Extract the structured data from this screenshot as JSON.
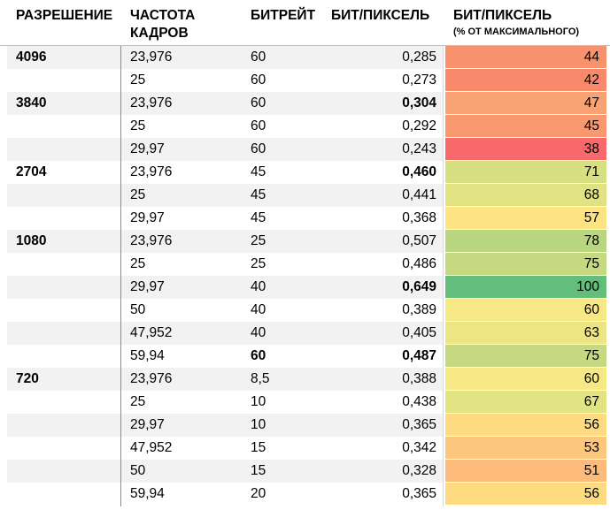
{
  "headers": {
    "resolution": "РАЗРЕШЕНИЕ",
    "framerate_line1": "ЧАСТОТА",
    "framerate_line2": "КАДРОВ",
    "bitrate": "БИТРЕЙТ",
    "bpp": "БИТ/ПИКСЕЛЬ",
    "pct": "БИТ/ПИКСЕЛЬ",
    "pct_sub": "(% ОТ МАКСИМАЛЬНОГО)"
  },
  "rows": [
    {
      "res": "4096",
      "fps": "23,976",
      "bitrate": "60",
      "bpp": "0,285",
      "pct": "44",
      "heat_color": "#f8926c",
      "bpp_bold": false,
      "bit_bold": false,
      "shade": true
    },
    {
      "res": "",
      "fps": "25",
      "bitrate": "60",
      "bpp": "0,273",
      "pct": "42",
      "heat_color": "#f8896b",
      "bpp_bold": false,
      "bit_bold": false,
      "shade": false
    },
    {
      "res": "3840",
      "fps": "23,976",
      "bitrate": "60",
      "bpp": "0,304",
      "pct": "47",
      "heat_color": "#f9a274",
      "bpp_bold": true,
      "bit_bold": false,
      "shade": true
    },
    {
      "res": "",
      "fps": "25",
      "bitrate": "60",
      "bpp": "0,292",
      "pct": "45",
      "heat_color": "#f9986f",
      "bpp_bold": false,
      "bit_bold": false,
      "shade": false
    },
    {
      "res": "",
      "fps": "29,97",
      "bitrate": "60",
      "bpp": "0,243",
      "pct": "38",
      "heat_color": "#f8696b",
      "bpp_bold": false,
      "bit_bold": false,
      "shade": true
    },
    {
      "res": "2704",
      "fps": "23,976",
      "bitrate": "45",
      "bpp": "0,460",
      "pct": "71",
      "heat_color": "#d7e080",
      "bpp_bold": true,
      "bit_bold": false,
      "shade": false
    },
    {
      "res": "",
      "fps": "25",
      "bitrate": "45",
      "bpp": "0,441",
      "pct": "68",
      "heat_color": "#e1e282",
      "bpp_bold": false,
      "bit_bold": false,
      "shade": true
    },
    {
      "res": "",
      "fps": "29,97",
      "bitrate": "45",
      "bpp": "0,368",
      "pct": "57",
      "heat_color": "#fee383",
      "bpp_bold": false,
      "bit_bold": false,
      "shade": false
    },
    {
      "res": "1080",
      "fps": "23,976",
      "bitrate": "25",
      "bpp": "0,507",
      "pct": "78",
      "heat_color": "#b8d57f",
      "bpp_bold": false,
      "bit_bold": false,
      "shade": true
    },
    {
      "res": "",
      "fps": "25",
      "bitrate": "25",
      "bpp": "0,486",
      "pct": "75",
      "heat_color": "#c6d980",
      "bpp_bold": false,
      "bit_bold": false,
      "shade": false
    },
    {
      "res": "",
      "fps": "29,97",
      "bitrate": "40",
      "bpp": "0,649",
      "pct": "100",
      "heat_color": "#63be7b",
      "bpp_bold": true,
      "bit_bold": false,
      "shade": true
    },
    {
      "res": "",
      "fps": "50",
      "bitrate": "40",
      "bpp": "0,389",
      "pct": "60",
      "heat_color": "#f6e884",
      "bpp_bold": false,
      "bit_bold": false,
      "shade": false
    },
    {
      "res": "",
      "fps": "47,952",
      "bitrate": "40",
      "bpp": "0,405",
      "pct": "63",
      "heat_color": "#ede583",
      "bpp_bold": false,
      "bit_bold": false,
      "shade": true
    },
    {
      "res": "",
      "fps": "59,94",
      "bitrate": "60",
      "bpp": "0,487",
      "pct": "75",
      "heat_color": "#c6d980",
      "bpp_bold": true,
      "bit_bold": true,
      "shade": false
    },
    {
      "res": "720",
      "fps": "23,976",
      "bitrate": "8,5",
      "bpp": "0,388",
      "pct": "60",
      "heat_color": "#f6e884",
      "bpp_bold": false,
      "bit_bold": false,
      "shade": true
    },
    {
      "res": "",
      "fps": "25",
      "bitrate": "10",
      "bpp": "0,438",
      "pct": "67",
      "heat_color": "#e2e383",
      "bpp_bold": false,
      "bit_bold": false,
      "shade": false
    },
    {
      "res": "",
      "fps": "29,97",
      "bitrate": "10",
      "bpp": "0,365",
      "pct": "56",
      "heat_color": "#fedb81",
      "bpp_bold": false,
      "bit_bold": false,
      "shade": true
    },
    {
      "res": "",
      "fps": "47,952",
      "bitrate": "15",
      "bpp": "0,342",
      "pct": "53",
      "heat_color": "#fdc67d",
      "bpp_bold": false,
      "bit_bold": false,
      "shade": false
    },
    {
      "res": "",
      "fps": "50",
      "bitrate": "15",
      "bpp": "0,328",
      "pct": "51",
      "heat_color": "#fcbb7b",
      "bpp_bold": false,
      "bit_bold": false,
      "shade": true
    },
    {
      "res": "",
      "fps": "59,94",
      "bitrate": "20",
      "bpp": "0,365",
      "pct": "56",
      "heat_color": "#fedb81",
      "bpp_bold": false,
      "bit_bold": false,
      "shade": false
    }
  ]
}
